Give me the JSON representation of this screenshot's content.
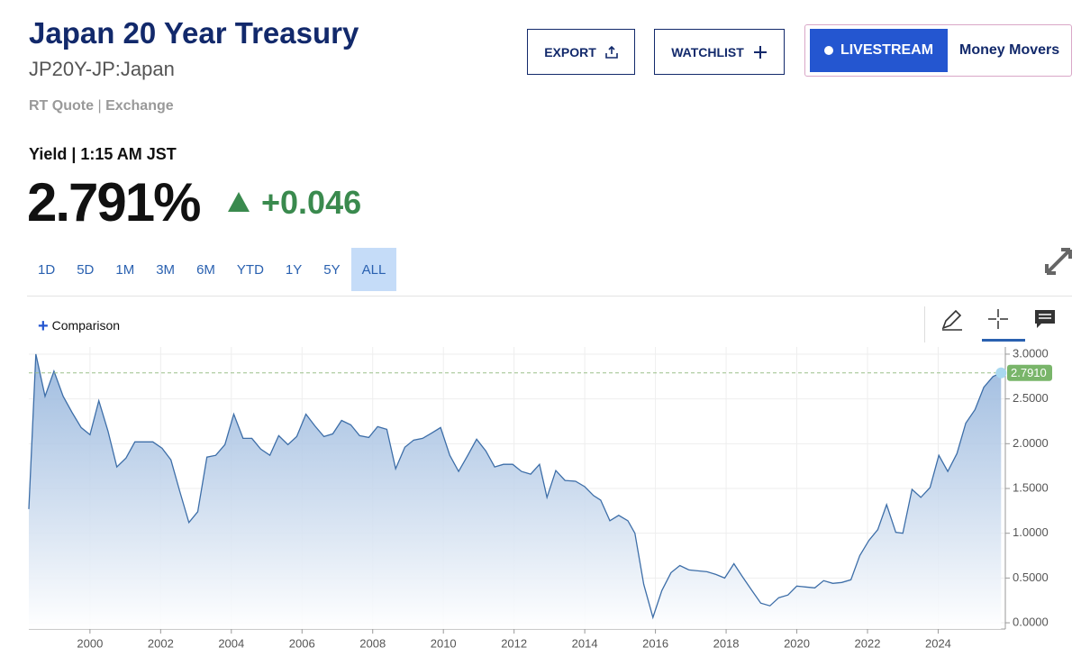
{
  "header": {
    "title": "Japan 20 Year Treasury",
    "symbol": "JP20Y-JP:Japan",
    "quote_type": "RT Quote",
    "exchange": "Exchange",
    "yield_label": "Yield | 1:15 AM JST",
    "price": "2.791%",
    "change": "+0.046"
  },
  "buttons": {
    "export": "EXPORT",
    "watchlist": "WATCHLIST",
    "livestream": "LIVESTREAM",
    "show": "Money Movers"
  },
  "ranges": [
    "1D",
    "5D",
    "1M",
    "3M",
    "6M",
    "YTD",
    "1Y",
    "5Y",
    "ALL"
  ],
  "active_range": 8,
  "comparison": "Comparison",
  "chart_data": {
    "type": "area",
    "color": "#3d6ea8",
    "grid": true,
    "x": [
      1998.27,
      1998.47,
      1998.73,
      1998.98,
      1999.24,
      1999.49,
      1999.75,
      2000.0,
      2000.25,
      2000.51,
      2000.76,
      2001.02,
      2001.27,
      2001.78,
      2002.04,
      2002.29,
      2002.54,
      2002.8,
      2003.05,
      2003.31,
      2003.56,
      2003.82,
      2004.07,
      2004.33,
      2004.58,
      2004.83,
      2005.09,
      2005.34,
      2005.6,
      2005.85,
      2006.11,
      2006.36,
      2006.62,
      2006.87,
      2007.12,
      2007.38,
      2007.63,
      2007.89,
      2008.14,
      2008.4,
      2008.65,
      2008.91,
      2009.16,
      2009.41,
      2009.67,
      2009.92,
      2010.18,
      2010.43,
      2010.69,
      2010.94,
      2011.2,
      2011.45,
      2011.7,
      2011.96,
      2012.21,
      2012.47,
      2012.72,
      2012.93,
      2013.18,
      2013.44,
      2013.74,
      2014.0,
      2014.25,
      2014.45,
      2014.71,
      2014.96,
      2015.22,
      2015.42,
      2015.67,
      2015.93,
      2016.18,
      2016.44,
      2016.69,
      2016.95,
      2017.2,
      2017.46,
      2017.71,
      2017.96,
      2018.22,
      2018.47,
      2018.73,
      2018.98,
      2019.24,
      2019.49,
      2019.75,
      2020.0,
      2020.25,
      2020.51,
      2020.76,
      2021.02,
      2021.27,
      2021.53,
      2021.78,
      2022.04,
      2022.29,
      2022.54,
      2022.8,
      2023.0,
      2023.26,
      2023.51,
      2023.77,
      2024.02,
      2024.27,
      2024.53,
      2024.78,
      2025.04,
      2025.29,
      2025.55,
      2025.78
    ],
    "series": [
      {
        "name": "JP20Y-JP",
        "values": [
          1.27,
          3.0,
          2.53,
          2.81,
          2.53,
          2.35,
          2.18,
          2.1,
          2.48,
          2.14,
          1.74,
          1.84,
          2.02,
          2.02,
          1.95,
          1.82,
          1.47,
          1.12,
          1.24,
          1.85,
          1.87,
          1.99,
          2.33,
          2.06,
          2.06,
          1.94,
          1.87,
          2.09,
          1.99,
          2.08,
          2.33,
          2.2,
          2.08,
          2.11,
          2.26,
          2.21,
          2.09,
          2.07,
          2.19,
          2.16,
          1.72,
          1.96,
          2.04,
          2.06,
          2.12,
          2.18,
          1.87,
          1.69,
          1.87,
          2.05,
          1.92,
          1.74,
          1.77,
          1.77,
          1.69,
          1.66,
          1.77,
          1.4,
          1.7,
          1.59,
          1.58,
          1.52,
          1.42,
          1.37,
          1.14,
          1.2,
          1.14,
          1.0,
          0.43,
          0.06,
          0.36,
          0.56,
          0.64,
          0.59,
          0.58,
          0.57,
          0.54,
          0.5,
          0.66,
          0.51,
          0.36,
          0.22,
          0.19,
          0.28,
          0.31,
          0.41,
          0.4,
          0.39,
          0.47,
          0.44,
          0.45,
          0.48,
          0.75,
          0.92,
          1.04,
          1.32,
          1.01,
          1.0,
          1.49,
          1.4,
          1.51,
          1.87,
          1.69,
          1.89,
          2.23,
          2.38,
          2.63,
          2.75,
          2.791
        ],
        "last_label": "2.7910"
      }
    ],
    "xlim": [
      1998.27,
      2025.9
    ],
    "ylim": [
      -0.07,
      3.08
    ],
    "xticks": [
      2000,
      2002,
      2004,
      2006,
      2008,
      2010,
      2012,
      2014,
      2016,
      2018,
      2020,
      2022,
      2024
    ],
    "yticks": [
      {
        "value": 0,
        "label": "0.0000"
      },
      {
        "value": 0.5,
        "label": "0.5000"
      },
      {
        "value": 1,
        "label": "1.0000"
      },
      {
        "value": 1.5,
        "label": "1.5000"
      },
      {
        "value": 2,
        "label": "2.0000"
      },
      {
        "value": 2.5,
        "label": "2.5000"
      },
      {
        "value": 3,
        "label": "3.0000"
      }
    ]
  }
}
